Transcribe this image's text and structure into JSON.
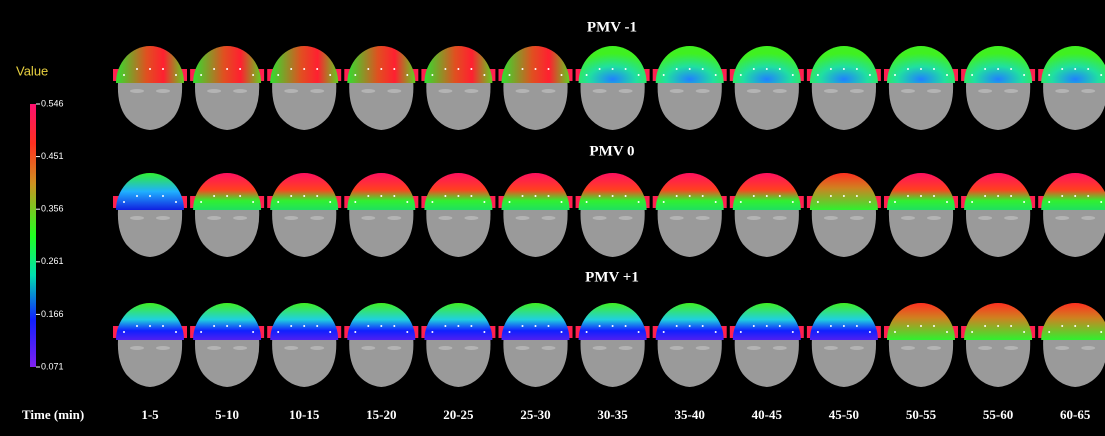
{
  "legend": {
    "title": "Value",
    "ticks": [
      0.546,
      0.451,
      0.356,
      0.261,
      0.166,
      0.071
    ]
  },
  "rows": [
    {
      "title": "PMV  -1"
    },
    {
      "title": "PMV  0"
    },
    {
      "title": "PMV  +1"
    }
  ],
  "time": {
    "label": "Time  (min)",
    "labels": [
      "1-5",
      "5-10",
      "10-15",
      "15-20",
      "20-25",
      "25-30",
      "30-35",
      "35-40",
      "40-45",
      "45-50",
      "50-55",
      "55-60",
      "60-65"
    ]
  }
}
